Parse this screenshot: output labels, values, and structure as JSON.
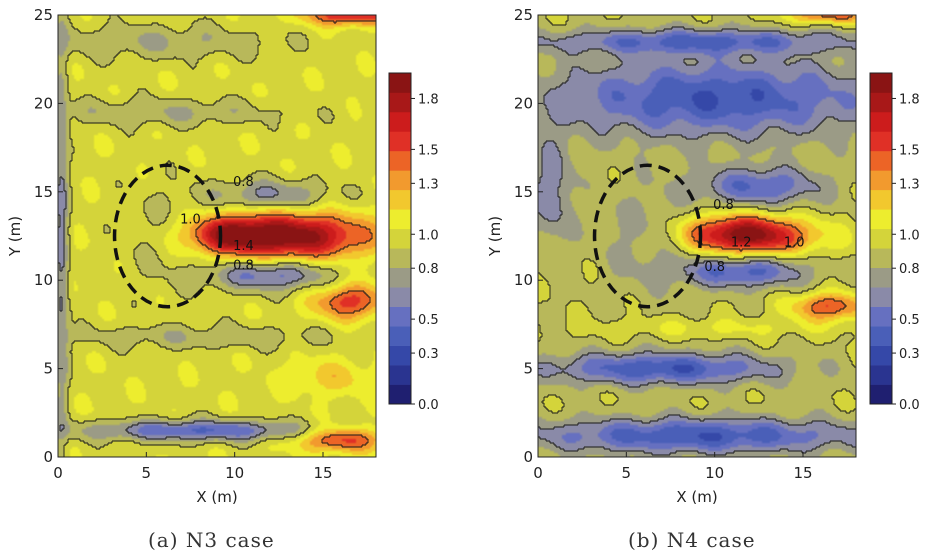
{
  "palette": [
    "#1f1f70",
    "#2a3490",
    "#3548a8",
    "#4a5fb8",
    "#6670c0",
    "#8a8aa8",
    "#9b9b86",
    "#b8b85a",
    "#d4d43a",
    "#eded2e",
    "#f2c82e",
    "#f29a2e",
    "#ec6426",
    "#e03026",
    "#cc1c1c",
    "#a81818",
    "#8a1414"
  ],
  "chart_data": [
    {
      "type": "heatmap",
      "caption": "(a) N3 case",
      "xlabel": "X (m)",
      "ylabel": "Y (m)",
      "xlim": [
        0,
        18
      ],
      "ylim": [
        0,
        25
      ],
      "x_ticks": [
        "0",
        "5",
        "10",
        "15"
      ],
      "y_ticks": [
        "0",
        "5",
        "10",
        "15",
        "20",
        "25"
      ],
      "colorbar": {
        "range": [
          0.0,
          1.95
        ],
        "ticks": [
          "0.0",
          "0.3",
          "0.5",
          "0.8",
          "1.0",
          "1.3",
          "1.5",
          "1.8"
        ]
      },
      "contour_labels": [
        {
          "text": "0.8",
          "x": 10.5,
          "y": 15.6
        },
        {
          "text": "1.0",
          "x": 7.5,
          "y": 13.5
        },
        {
          "text": "1.4",
          "x": 10.5,
          "y": 12.0
        },
        {
          "text": "0.8",
          "x": 10.5,
          "y": 10.9
        }
      ],
      "marked_region": {
        "shape": "dashed-ellipse",
        "center": [
          6.2,
          12.5
        ],
        "radius_x": 3.0,
        "radius_y": 4.0
      },
      "field": {
        "background": 1.0,
        "features": [
          {
            "cx": 13.0,
            "cy": 12.5,
            "rx": 4.5,
            "ry": 1.3,
            "amp": 0.95
          },
          {
            "cx": 9.5,
            "cy": 12.6,
            "rx": 2.2,
            "ry": 1.0,
            "amp": 0.45
          },
          {
            "cx": 16.5,
            "cy": 8.8,
            "rx": 2.0,
            "ry": 1.0,
            "amp": 0.55
          },
          {
            "cx": 16.0,
            "cy": 1.0,
            "rx": 2.5,
            "ry": 0.7,
            "amp": 0.55
          },
          {
            "cx": 16.5,
            "cy": 25.0,
            "rx": 2.5,
            "ry": 0.6,
            "amp": 0.65
          },
          {
            "cx": 12.0,
            "cy": 10.3,
            "rx": 3.5,
            "ry": 0.9,
            "amp": -0.5
          },
          {
            "cx": 12.0,
            "cy": 14.8,
            "rx": 3.5,
            "ry": 0.9,
            "amp": -0.35
          },
          {
            "cx": 8.0,
            "cy": 1.5,
            "rx": 6.5,
            "ry": 0.6,
            "amp": -0.55
          },
          {
            "cx": 5.5,
            "cy": 23.5,
            "rx": 7.0,
            "ry": 1.0,
            "amp": -0.2
          },
          {
            "cx": 6.0,
            "cy": 19.5,
            "rx": 7.0,
            "ry": 0.8,
            "amp": -0.2
          },
          {
            "cx": 8.0,
            "cy": 6.8,
            "rx": 8.0,
            "ry": 0.7,
            "amp": -0.18
          },
          {
            "cx": 0.2,
            "cy": 12.0,
            "rx": 0.4,
            "ry": 12.0,
            "amp": -0.35
          },
          {
            "cx": 6.0,
            "cy": 12.5,
            "rx": 2.5,
            "ry": 3.0,
            "amp": -0.12
          },
          {
            "cx": 15.5,
            "cy": 4.5,
            "rx": 2.5,
            "ry": 1.0,
            "amp": 0.2
          }
        ]
      }
    },
    {
      "type": "heatmap",
      "caption": "(b) N4 case",
      "xlabel": "X (m)",
      "ylabel": "Y (m)",
      "xlim": [
        0,
        18
      ],
      "ylim": [
        0,
        25
      ],
      "x_ticks": [
        "0",
        "5",
        "10",
        "15"
      ],
      "y_ticks": [
        "0",
        "5",
        "10",
        "15",
        "20",
        "25"
      ],
      "colorbar": {
        "range": [
          0.0,
          1.95
        ],
        "ticks": [
          "0.0",
          "0.3",
          "0.5",
          "0.8",
          "1.0",
          "1.3",
          "1.5",
          "1.8"
        ]
      },
      "contour_labels": [
        {
          "text": "0.8",
          "x": 10.5,
          "y": 14.3
        },
        {
          "text": "1.2",
          "x": 11.5,
          "y": 12.2
        },
        {
          "text": "1.0",
          "x": 14.5,
          "y": 12.2
        },
        {
          "text": "0.8",
          "x": 10.0,
          "y": 10.8
        }
      ],
      "marked_region": {
        "shape": "dashed-ellipse",
        "center": [
          6.2,
          12.5
        ],
        "radius_x": 3.0,
        "radius_y": 4.0
      },
      "field": {
        "background": 0.9,
        "features": [
          {
            "cx": 11.5,
            "cy": 12.6,
            "rx": 3.2,
            "ry": 1.1,
            "amp": 0.95
          },
          {
            "cx": 14.5,
            "cy": 12.4,
            "rx": 3.5,
            "ry": 1.0,
            "amp": 0.2
          },
          {
            "cx": 16.5,
            "cy": 8.5,
            "rx": 2.2,
            "ry": 0.8,
            "amp": 0.6
          },
          {
            "cx": 16.5,
            "cy": 25.0,
            "rx": 2.5,
            "ry": 0.5,
            "amp": 0.55
          },
          {
            "cx": 10.0,
            "cy": 20.3,
            "rx": 9.5,
            "ry": 2.2,
            "amp": -0.55
          },
          {
            "cx": 9.0,
            "cy": 23.5,
            "rx": 9.0,
            "ry": 0.7,
            "amp": -0.45
          },
          {
            "cx": 7.0,
            "cy": 5.0,
            "rx": 6.5,
            "ry": 0.9,
            "amp": -0.55
          },
          {
            "cx": 9.0,
            "cy": 1.2,
            "rx": 9.5,
            "ry": 1.0,
            "amp": -0.55
          },
          {
            "cx": 11.5,
            "cy": 10.5,
            "rx": 3.5,
            "ry": 0.9,
            "amp": -0.5
          },
          {
            "cx": 12.5,
            "cy": 15.3,
            "rx": 3.5,
            "ry": 1.1,
            "amp": -0.45
          },
          {
            "cx": 0.8,
            "cy": 15.0,
            "rx": 1.2,
            "ry": 3.0,
            "amp": -0.3
          },
          {
            "cx": 6.0,
            "cy": 12.5,
            "rx": 2.5,
            "ry": 3.0,
            "amp": -0.15
          },
          {
            "cx": 10.0,
            "cy": 7.3,
            "rx": 7.0,
            "ry": 0.6,
            "amp": 0.15
          }
        ]
      }
    }
  ]
}
